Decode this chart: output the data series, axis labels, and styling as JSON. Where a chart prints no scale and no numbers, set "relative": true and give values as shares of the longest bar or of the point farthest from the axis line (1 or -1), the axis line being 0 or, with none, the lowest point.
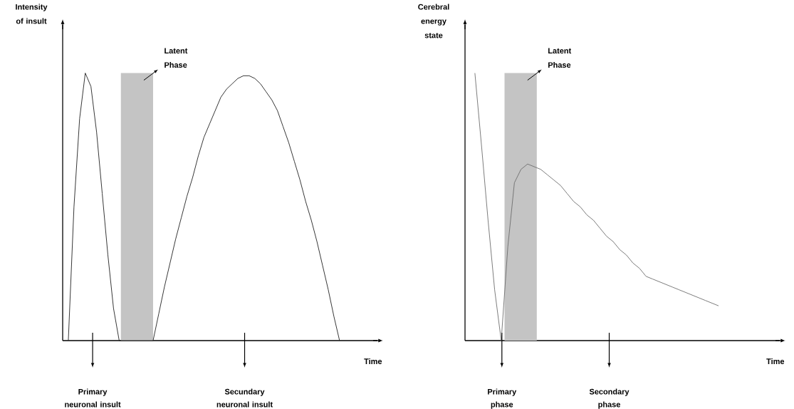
{
  "chart_data": [
    {
      "type": "line",
      "relative": true,
      "ylabel": "Intensity of insult",
      "xlabel": "Time",
      "categories": [
        null,
        null,
        null,
        null,
        null,
        null,
        null,
        null,
        null,
        null,
        null,
        null,
        null,
        null,
        null,
        null,
        null,
        null,
        null,
        null,
        null,
        null,
        null,
        null,
        null,
        null,
        null,
        null,
        null,
        null,
        null,
        null,
        null,
        null,
        null,
        null,
        null,
        null,
        null,
        null,
        null,
        null,
        null,
        null,
        null,
        null,
        null,
        null,
        null
      ],
      "series": [
        {
          "color": "#202020",
          "values": [
            0,
            0.5,
            0.83,
            1.0,
            0.95,
            0.78,
            0.55,
            0.32,
            0.12,
            0,
            0,
            0,
            0,
            0,
            0,
            0,
            0.1,
            0.2,
            0.29,
            0.38,
            0.46,
            0.54,
            0.61,
            0.69,
            0.76,
            0.81,
            0.86,
            0.91,
            0.94,
            0.96,
            0.98,
            0.99,
            0.99,
            0.98,
            0.96,
            0.93,
            0.9,
            0.86,
            0.8,
            0.74,
            0.67,
            0.6,
            0.52,
            0.45,
            0.37,
            0.28,
            0.19,
            0.09,
            0
          ]
        }
      ],
      "annotations": [
        "Latent Phase",
        "Primary neuronal insult",
        "Secundary neuronal insult"
      ]
    },
    {
      "type": "line",
      "relative": true,
      "ylabel": "Cerebral energy state",
      "xlabel": "Time",
      "categories": [
        null,
        null,
        null,
        null,
        null,
        null,
        null,
        null,
        null,
        null,
        null,
        null,
        null,
        null,
        null,
        null,
        null,
        null,
        null,
        null,
        null,
        null,
        null,
        null,
        null,
        null,
        null,
        null,
        null,
        null,
        null,
        null,
        null,
        null,
        null,
        null,
        null,
        null
      ],
      "series": [
        {
          "color": "#6e6e6e",
          "values": [
            1.0,
            0.73,
            0.45,
            0.19,
            0,
            0.35,
            0.59,
            0.64,
            0.66,
            0.65,
            0.64,
            0.62,
            0.6,
            0.58,
            0.55,
            0.52,
            0.5,
            0.47,
            0.45,
            0.42,
            0.39,
            0.37,
            0.34,
            0.32,
            0.29,
            0.27,
            0.24,
            0.23,
            0.22,
            0.21,
            0.2,
            0.19,
            0.18,
            0.17,
            0.16,
            0.15,
            0.14,
            0.13
          ]
        }
      ],
      "annotations": [
        "Latent Phase",
        "Primary phase",
        "Secondary phase"
      ]
    }
  ]
}
